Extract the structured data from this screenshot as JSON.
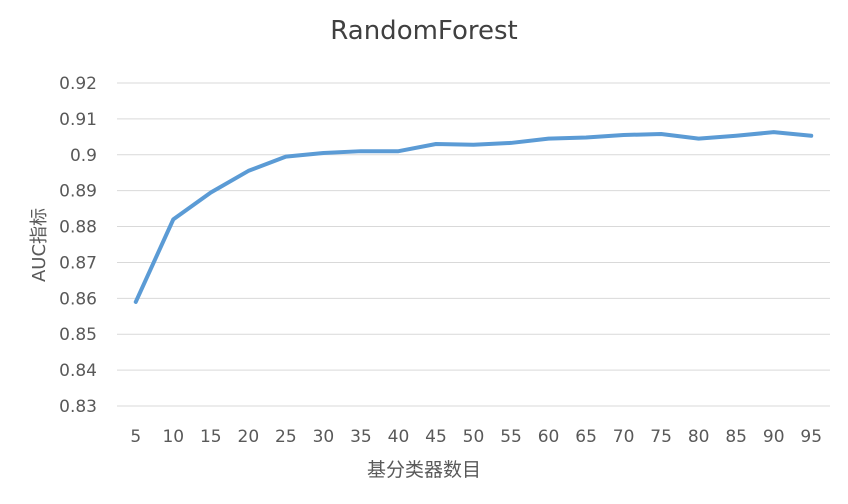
{
  "chart_data": {
    "type": "line",
    "title": "RandomForest",
    "xlabel": "基分类器数目",
    "ylabel": "AUC指标",
    "x": [
      5,
      10,
      15,
      20,
      25,
      30,
      35,
      40,
      45,
      50,
      55,
      60,
      65,
      70,
      75,
      80,
      85,
      90,
      95
    ],
    "series": [
      {
        "name": "RandomForest",
        "values": [
          0.859,
          0.882,
          0.8895,
          0.8955,
          0.8995,
          0.9005,
          0.901,
          0.901,
          0.903,
          0.9028,
          0.9033,
          0.9045,
          0.9048,
          0.9055,
          0.9058,
          0.9045,
          0.9053,
          0.9063,
          0.9053
        ]
      }
    ],
    "yticks": [
      "0.83",
      "0.84",
      "0.85",
      "0.86",
      "0.87",
      "0.88",
      "0.89",
      "0.9",
      "0.91",
      "0.92"
    ],
    "ylim": [
      0.83,
      0.92
    ],
    "grid": true,
    "line_color": "#5b9bd5",
    "grid_color": "#d9d9d9"
  }
}
